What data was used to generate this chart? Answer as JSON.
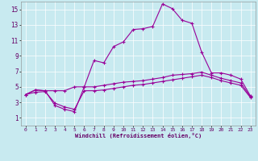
{
  "xlabel": "Windchill (Refroidissement éolien,°C)",
  "bg_color": "#c8eaf0",
  "line_color": "#990099",
  "xlim": [
    -0.5,
    23.5
  ],
  "ylim": [
    0,
    16
  ],
  "xticks": [
    0,
    1,
    2,
    3,
    4,
    5,
    6,
    7,
    8,
    9,
    10,
    11,
    12,
    13,
    14,
    15,
    16,
    17,
    18,
    19,
    20,
    21,
    22,
    23
  ],
  "yticks": [
    1,
    3,
    5,
    7,
    9,
    11,
    13,
    15
  ],
  "series": {
    "line1_x": [
      0,
      1,
      2,
      3,
      4,
      5,
      6,
      7,
      8,
      9,
      10,
      11,
      12,
      13,
      14,
      15,
      16,
      17,
      18,
      19,
      20,
      21,
      22,
      23
    ],
    "line1_y": [
      4.0,
      4.6,
      4.5,
      4.5,
      4.5,
      5.0,
      5.0,
      5.0,
      5.2,
      5.4,
      5.6,
      5.7,
      5.8,
      6.0,
      6.2,
      6.5,
      6.6,
      6.7,
      6.9,
      6.5,
      6.1,
      5.8,
      5.5,
      3.7
    ],
    "line2_x": [
      0,
      1,
      2,
      3,
      4,
      5,
      6,
      7,
      8,
      9,
      10,
      11,
      12,
      13,
      14,
      15,
      16,
      17,
      18,
      19,
      20,
      21,
      22,
      23
    ],
    "line2_y": [
      4.0,
      4.6,
      4.5,
      2.6,
      2.1,
      1.8,
      5.0,
      8.4,
      8.1,
      10.2,
      10.8,
      12.4,
      12.5,
      12.8,
      15.7,
      15.1,
      13.6,
      13.2,
      9.5,
      6.8,
      6.8,
      6.5,
      6.0,
      3.8
    ],
    "line3_x": [
      0,
      1,
      2,
      3,
      4,
      5,
      6,
      7,
      8,
      9,
      10,
      11,
      12,
      13,
      14,
      15,
      16,
      17,
      18,
      19,
      20,
      21,
      22,
      23
    ],
    "line3_y": [
      4.0,
      4.3,
      4.4,
      2.9,
      2.4,
      2.1,
      4.5,
      4.5,
      4.6,
      4.8,
      5.0,
      5.2,
      5.3,
      5.5,
      5.7,
      5.9,
      6.1,
      6.3,
      6.5,
      6.2,
      5.8,
      5.5,
      5.2,
      3.6
    ]
  }
}
